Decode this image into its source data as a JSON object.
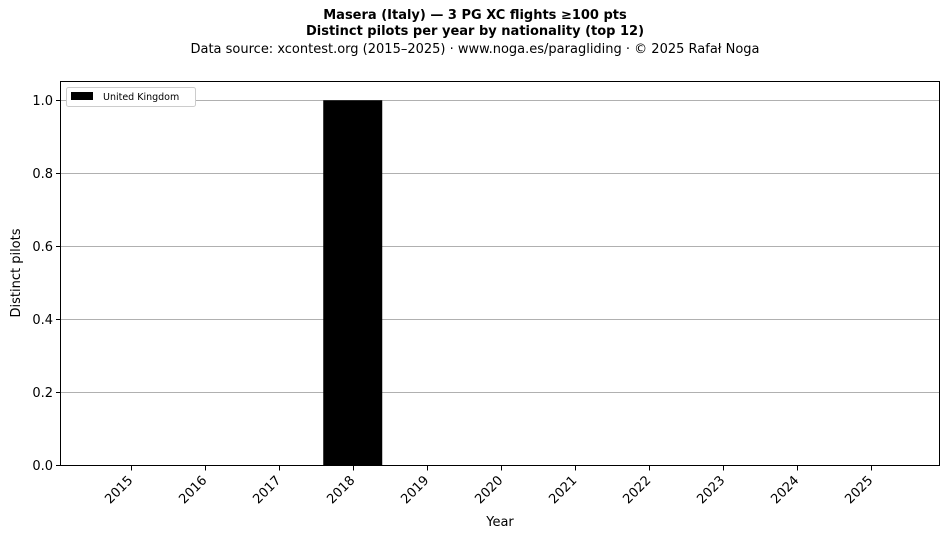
{
  "title_line1": "Masera (Italy)  —  3 PG XC flights ≥100 pts",
  "title_line2": "Distinct pilots per year by nationality (top 12)",
  "title_line3": "Data source: xcontest.org (2015–2025)  ·  www.noga.es/paragliding  ·  © 2025 Rafał Noga",
  "chart_data": {
    "type": "bar",
    "stacked": true,
    "categories": [
      "2015",
      "2016",
      "2017",
      "2018",
      "2019",
      "2020",
      "2021",
      "2022",
      "2023",
      "2024",
      "2025"
    ],
    "series": [
      {
        "name": "United Kingdom",
        "color": "#000000",
        "values": [
          0,
          0,
          0,
          1,
          0,
          0,
          0,
          0,
          0,
          0,
          0
        ]
      }
    ],
    "xlabel": "Year",
    "ylabel": "Distinct pilots",
    "ylim": [
      0,
      1.05
    ],
    "yticks": [
      0.0,
      0.2,
      0.4,
      0.6,
      0.8,
      1.0
    ],
    "ytick_labels": [
      "0.0",
      "0.2",
      "0.4",
      "0.6",
      "0.8",
      "1.0"
    ],
    "grid": "y",
    "legend_position": "top-left"
  }
}
